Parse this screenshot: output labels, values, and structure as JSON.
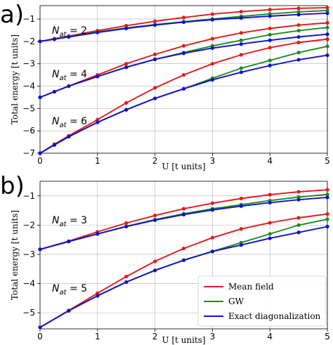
{
  "panels_letters": [
    "a)",
    "b)"
  ],
  "chart_data": [
    {
      "type": "line",
      "xlabel": "U [t units]",
      "ylabel": "Total energy [t units]",
      "xlim": [
        0,
        5
      ],
      "ylim": [
        -7,
        -0.4
      ],
      "xticks": [
        0,
        1,
        2,
        3,
        4,
        5
      ],
      "yticks": [
        -7,
        -6,
        -5,
        -4,
        -3,
        -2,
        -1
      ],
      "grid": true,
      "x": [
        0,
        0.25,
        0.5,
        1,
        1.5,
        2,
        2.5,
        3,
        3.5,
        4,
        4.5,
        5
      ],
      "colors": {
        "Mean field": "#e31a1c",
        "GW": "#1f8a1f",
        "Exact diagonalization": "#1010d0"
      },
      "annotations": [
        {
          "main": "N",
          "sub": "at",
          "rest": " = 2"
        },
        {
          "main": "N",
          "sub": "at",
          "rest": " = 4"
        },
        {
          "main": "N",
          "sub": "at",
          "rest": " = 6"
        }
      ],
      "groups": [
        {
          "series": [
            {
              "method": "Mean field",
              "values": [
                -2.0,
                -1.88,
                -1.76,
                -1.52,
                -1.3,
                -1.1,
                -0.93,
                -0.78,
                -0.67,
                -0.58,
                -0.52,
                -0.49
              ]
            },
            {
              "method": "GW",
              "values": [
                -2.0,
                -1.9,
                -1.79,
                -1.58,
                -1.4,
                -1.25,
                -1.12,
                -1.0,
                -0.88,
                -0.77,
                -0.68,
                -0.62
              ]
            },
            {
              "method": "Exact diagonalization",
              "values": [
                -2.0,
                -1.9,
                -1.8,
                -1.6,
                -1.42,
                -1.27,
                -1.14,
                -1.03,
                -0.95,
                -0.87,
                -0.8,
                -0.74
              ]
            }
          ]
        },
        {
          "series": [
            {
              "method": "Mean field",
              "values": [
                -4.5,
                -4.25,
                -4.0,
                -3.5,
                -3.0,
                -2.58,
                -2.2,
                -1.88,
                -1.62,
                -1.42,
                -1.27,
                -1.17
              ]
            },
            {
              "method": "GW",
              "values": [
                -4.5,
                -4.25,
                -4.0,
                -3.57,
                -3.15,
                -2.8,
                -2.5,
                -2.2,
                -1.95,
                -1.7,
                -1.52,
                -1.38
              ]
            },
            {
              "method": "Exact diagonalization",
              "values": [
                -4.5,
                -4.25,
                -4.0,
                -3.57,
                -3.16,
                -2.8,
                -2.53,
                -2.3,
                -2.12,
                -1.95,
                -1.8,
                -1.68
              ]
            }
          ]
        },
        {
          "series": [
            {
              "method": "Mean field",
              "values": [
                -7.0,
                -6.6,
                -6.22,
                -5.5,
                -4.75,
                -4.08,
                -3.5,
                -3.0,
                -2.6,
                -2.28,
                -2.05,
                -1.9
              ]
            },
            {
              "method": "GW",
              "values": [
                -7.0,
                -6.63,
                -6.26,
                -5.62,
                -5.05,
                -4.55,
                -4.12,
                -3.65,
                -3.2,
                -2.85,
                -2.5,
                -2.22
              ]
            },
            {
              "method": "Exact diagonalization",
              "values": [
                -7.0,
                -6.63,
                -6.26,
                -5.62,
                -5.06,
                -4.55,
                -4.12,
                -3.72,
                -3.38,
                -3.08,
                -2.82,
                -2.62
              ]
            }
          ]
        }
      ]
    },
    {
      "type": "line",
      "xlabel": "U [t units]",
      "ylabel": "Total energy [t units]",
      "xlim": [
        0,
        5
      ],
      "ylim": [
        -5.55,
        -0.5
      ],
      "xticks": [
        0,
        1,
        2,
        3,
        4,
        5
      ],
      "yticks": [
        -5,
        -4,
        -3,
        -2,
        -1
      ],
      "grid": true,
      "legend_loc": "lower-right",
      "legend": [
        "Mean field",
        "GW",
        "Exact diagonalization"
      ],
      "x": [
        0,
        0.5,
        1,
        1.5,
        2,
        2.5,
        3,
        3.5,
        4,
        4.5,
        5
      ],
      "colors": {
        "Mean field": "#e31a1c",
        "GW": "#1f8a1f",
        "Exact diagonalization": "#1010d0"
      },
      "annotations": [
        {
          "main": "N",
          "sub": "at",
          "rest": " = 3"
        },
        {
          "main": "N",
          "sub": "at",
          "rest": " = 5"
        }
      ],
      "groups": [
        {
          "series": [
            {
              "method": "Mean field",
              "values": [
                -2.83,
                -2.55,
                -2.23,
                -1.93,
                -1.67,
                -1.44,
                -1.25,
                -1.09,
                -0.96,
                -0.86,
                -0.79
              ]
            },
            {
              "method": "GW",
              "values": [
                -2.83,
                -2.56,
                -2.3,
                -2.04,
                -1.81,
                -1.61,
                -1.44,
                -1.3,
                -1.16,
                -1.04,
                -0.95
              ]
            },
            {
              "method": "Exact diagonalization",
              "values": [
                -2.83,
                -2.56,
                -2.3,
                -2.05,
                -1.83,
                -1.64,
                -1.48,
                -1.35,
                -1.23,
                -1.13,
                -1.05
              ]
            }
          ]
        },
        {
          "series": [
            {
              "method": "Mean field",
              "values": [
                -5.5,
                -4.92,
                -4.33,
                -3.76,
                -3.24,
                -2.8,
                -2.43,
                -2.13,
                -1.92,
                -1.75,
                -1.62
              ]
            },
            {
              "method": "GW",
              "values": [
                -5.5,
                -4.93,
                -4.42,
                -3.95,
                -3.55,
                -3.2,
                -2.9,
                -2.6,
                -2.3,
                -2.0,
                -1.8
              ]
            },
            {
              "method": "Exact diagonalization",
              "values": [
                -5.5,
                -4.93,
                -4.42,
                -3.95,
                -3.55,
                -3.2,
                -2.9,
                -2.68,
                -2.45,
                -2.25,
                -2.05
              ]
            }
          ]
        }
      ]
    }
  ]
}
